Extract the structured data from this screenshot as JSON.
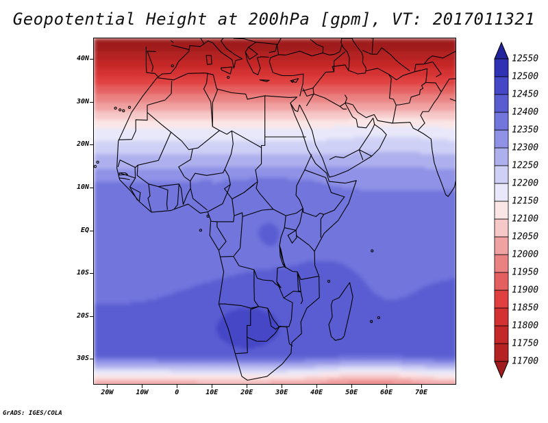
{
  "title": "Geopotential Height at 200hPa [gpm], VT: 2017011321",
  "footer": "GrADS: IGES/COLA",
  "map": {
    "lon_range": [
      -24,
      80
    ],
    "lat_range": [
      -36,
      45
    ],
    "lat_labels": [
      "40N",
      "30N",
      "20N",
      "10N",
      "EQ",
      "10S",
      "20S",
      "30S"
    ],
    "lat_values": [
      40,
      30,
      20,
      10,
      0,
      -10,
      -20,
      -30
    ],
    "lon_labels": [
      "20W",
      "10W",
      "0",
      "10E",
      "20E",
      "30E",
      "40E",
      "50E",
      "60E",
      "70E"
    ],
    "lon_values": [
      -20,
      -10,
      0,
      10,
      20,
      30,
      40,
      50,
      60,
      70
    ]
  },
  "chart_data": {
    "type": "heatmap",
    "title": "Geopotential Height at 200hPa [gpm], VT: 2017011321",
    "variable": "Geopotential Height at 200hPa",
    "units": "gpm",
    "valid_time": "2017011321",
    "levels": [
      11700,
      11750,
      11800,
      11850,
      11900,
      11950,
      12000,
      12050,
      12100,
      12150,
      12200,
      12250,
      12300,
      12350,
      12400,
      12450,
      12500,
      12550
    ],
    "level_labels": [
      "11700",
      "11750",
      "11800",
      "11850",
      "11900",
      "11950",
      "12000",
      "12050",
      "12100",
      "12150",
      "12200",
      "12250",
      "12300",
      "12350",
      "12400",
      "12450",
      "12500",
      "12550"
    ],
    "colors": [
      "#a01c1c",
      "#b42222",
      "#c42828",
      "#d43232",
      "#e04040",
      "#e46060",
      "#ea8282",
      "#f0a2a2",
      "#f6c8c8",
      "#fbe6e6",
      "#e8e8fa",
      "#cfd0f5",
      "#aeb0ee",
      "#8f92e6",
      "#7175dc",
      "#5a5dd2",
      "#4447c6",
      "#3032b4",
      "#22249c"
    ]
  },
  "colors": {
    "background": "#ffffff",
    "frame": "#000000",
    "boundaries": "#000000"
  }
}
